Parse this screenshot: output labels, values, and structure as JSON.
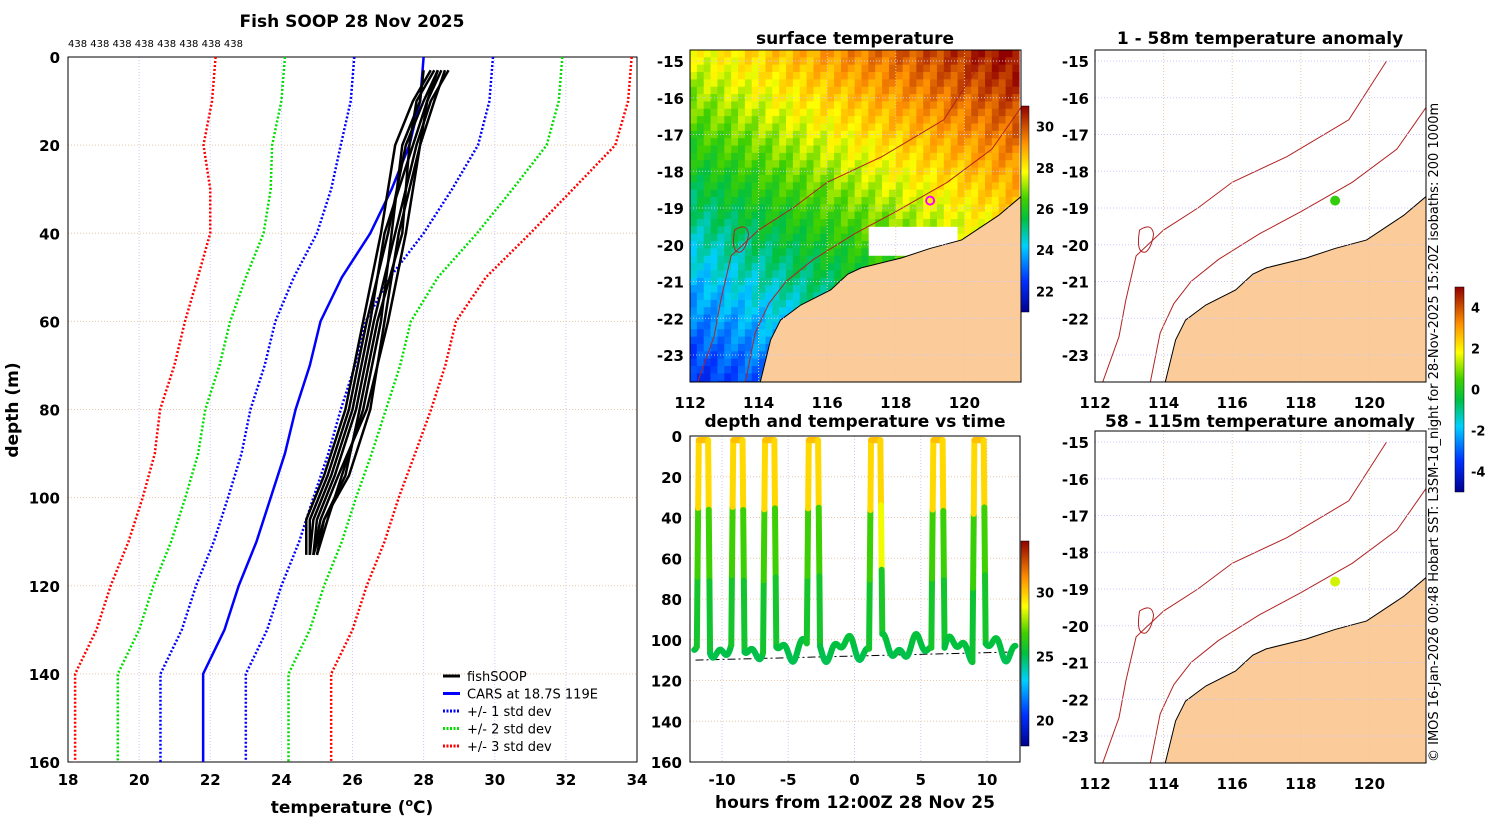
{
  "chart_data": [
    {
      "type": "line",
      "title": "Fish SOOP 28 Nov 2025",
      "profile_ids_label": "438 438 438 438 438 438 438 438",
      "xlabel": "temperature (",
      "xlabel_sup": "o",
      "xlabel_end": "C)",
      "ylabel": "depth (m)",
      "xlim": [
        18,
        34
      ],
      "ylim": [
        0,
        160
      ],
      "xticks": [
        "18",
        "20",
        "22",
        "24",
        "26",
        "28",
        "30",
        "32",
        "34"
      ],
      "yticks": [
        "0",
        "20",
        "40",
        "60",
        "80",
        "100",
        "120",
        "140",
        "160"
      ],
      "legend": [
        "fishSOOP",
        "CARS at 18.7S 119E",
        "+/- 1 std dev",
        "+/- 2 std dev",
        "+/- 3 std dev"
      ],
      "legend_position": "bottom-right",
      "cars_depths": [
        0,
        10,
        20,
        30,
        40,
        50,
        60,
        70,
        80,
        90,
        100,
        110,
        120,
        130,
        140,
        150,
        160
      ],
      "cars_mean": [
        28.0,
        27.9,
        27.6,
        27.1,
        26.5,
        25.7,
        25.1,
        24.8,
        24.4,
        24.1,
        23.7,
        23.3,
        22.8,
        22.4,
        21.8,
        21.8,
        21.8
      ],
      "cars_std": [
        1.95,
        1.95,
        1.93,
        1.7,
        1.5,
        1.35,
        1.27,
        1.27,
        1.27,
        1.22,
        1.2,
        1.2,
        1.2,
        1.2,
        1.2,
        1.2,
        1.2
      ],
      "fish_depths": [
        3,
        10,
        20,
        40,
        60,
        80,
        95,
        105,
        113
      ],
      "fish_profiles": [
        [
          28.7,
          28.2,
          27.8,
          27.2,
          26.6,
          26.1,
          25.5,
          25.0,
          24.9
        ],
        [
          28.4,
          28.0,
          27.5,
          27.0,
          26.4,
          25.9,
          25.3,
          24.8,
          24.8
        ],
        [
          28.3,
          27.8,
          27.6,
          27.4,
          26.7,
          26.2,
          25.8,
          25.2,
          25.0
        ],
        [
          28.6,
          28.3,
          27.9,
          27.5,
          27.0,
          26.4,
          25.6,
          25.1,
          24.9
        ],
        [
          28.2,
          27.7,
          27.2,
          26.8,
          26.3,
          25.8,
          25.2,
          24.7,
          24.7
        ],
        [
          28.5,
          28.1,
          27.7,
          26.9,
          26.5,
          26.0,
          25.4,
          24.9,
          24.8
        ],
        [
          28.0,
          27.9,
          27.4,
          27.1,
          26.8,
          26.3,
          25.7,
          25.3,
          25.0
        ],
        [
          28.4,
          28.1,
          27.9,
          27.3,
          26.9,
          26.5,
          25.9,
          25.2,
          24.9
        ]
      ]
    },
    {
      "type": "heatmap",
      "title": "surface temperature",
      "xticks": [
        "112",
        "114",
        "116",
        "118",
        "120"
      ],
      "yticks": [
        "-15",
        "-16",
        "-17",
        "-18",
        "-19",
        "-20",
        "-21",
        "-22",
        "-23"
      ],
      "colorbar_ticks": [
        "30",
        "28",
        "26",
        "24",
        "22"
      ],
      "colorbar_range": [
        21,
        31
      ],
      "marker": {
        "lon": 119.0,
        "lat": -18.8,
        "color": "#ff00ff"
      }
    },
    {
      "type": "line",
      "title": "depth and temperature vs time",
      "xlabel": "hours from 12:00Z 28 Nov 25",
      "xlim": [
        -12.3,
        12.6
      ],
      "ylim": [
        0,
        160
      ],
      "xticks": [
        "-10",
        "-5",
        "0",
        "5",
        "10"
      ],
      "yticks": [
        "0",
        "20",
        "40",
        "60",
        "80",
        "100",
        "120",
        "140",
        "160"
      ],
      "colorbar_ticks": [
        "30",
        "25",
        "20"
      ],
      "colorbar_range": [
        18,
        34
      ],
      "surfacing_hours": [
        -11.4,
        -8.8,
        -6.4,
        -3.1,
        1.6,
        6.3,
        9.4
      ],
      "bottom_depth_start": 110,
      "bottom_depth_end": 111
    },
    {
      "type": "heatmap",
      "title": "1 - 58m temperature anomaly",
      "xticks": [
        "112",
        "114",
        "116",
        "118",
        "120"
      ],
      "yticks": [
        "-15",
        "-16",
        "-17",
        "-18",
        "-19",
        "-20",
        "-21",
        "-22",
        "-23"
      ],
      "point": {
        "lon": 119.0,
        "lat": -18.8,
        "anomaly": 0.3
      }
    },
    {
      "type": "heatmap",
      "title": "58 - 115m temperature anomaly",
      "xticks": [
        "112",
        "114",
        "116",
        "118",
        "120"
      ],
      "yticks": [
        "-15",
        "-16",
        "-17",
        "-18",
        "-19",
        "-20",
        "-21",
        "-22",
        "-23"
      ],
      "point": {
        "lon": 119.0,
        "lat": -18.8,
        "anomaly": 1.5
      },
      "colorbar_ticks": [
        "4",
        "2",
        "0",
        "-2",
        "-4"
      ],
      "colorbar_range": [
        -5,
        5
      ]
    }
  ],
  "credit": "© IMOS 16-Jan-2026 00:48 Hobart SST: L3SM-1d_night for 28-Nov-2025 15:20Z isobaths: 200  1000m",
  "colors": {
    "land": "#fbcb9a",
    "isobath": "#b22222",
    "cars": "#0000ff"
  }
}
